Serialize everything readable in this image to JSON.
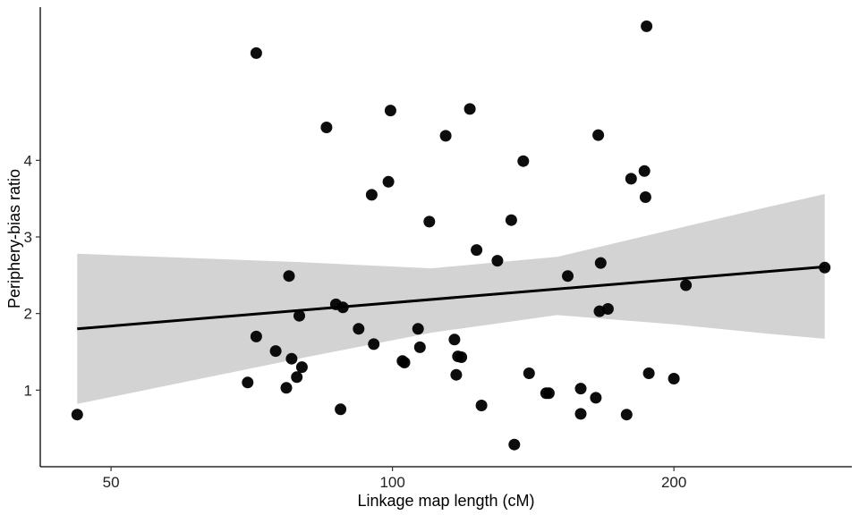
{
  "chart_data": {
    "type": "scatter",
    "title": "",
    "xlabel": "Linkage map length (cM)",
    "ylabel": "Periphery-bias ratio",
    "x_scale": "log10",
    "xlim": [
      42,
      310
    ],
    "ylim": [
      0,
      6
    ],
    "x_ticks": [
      50,
      100,
      200
    ],
    "x_tick_labels": [
      "50",
      "100",
      "200"
    ],
    "y_ticks": [
      1,
      2,
      3,
      4
    ],
    "y_tick_labels": [
      "1",
      "2",
      "3",
      "4"
    ],
    "grid": false,
    "legend": "none",
    "point_color": "#000000",
    "band_color": "#d3d3d3",
    "line_color": "#000000",
    "points": [
      {
        "x": 46,
        "y": 0.68
      },
      {
        "x": 70,
        "y": 1.1
      },
      {
        "x": 71.5,
        "y": 5.4
      },
      {
        "x": 71.5,
        "y": 1.7
      },
      {
        "x": 75,
        "y": 1.51
      },
      {
        "x": 77,
        "y": 1.03
      },
      {
        "x": 77.5,
        "y": 2.49
      },
      {
        "x": 78,
        "y": 1.41
      },
      {
        "x": 79,
        "y": 1.17
      },
      {
        "x": 79.5,
        "y": 1.97
      },
      {
        "x": 80,
        "y": 1.3
      },
      {
        "x": 85,
        "y": 4.43
      },
      {
        "x": 87,
        "y": 2.12
      },
      {
        "x": 88,
        "y": 0.75
      },
      {
        "x": 88.5,
        "y": 2.08
      },
      {
        "x": 92,
        "y": 1.8
      },
      {
        "x": 95,
        "y": 3.55
      },
      {
        "x": 95.5,
        "y": 1.6
      },
      {
        "x": 99,
        "y": 3.72
      },
      {
        "x": 99.5,
        "y": 4.65
      },
      {
        "x": 102.5,
        "y": 1.38
      },
      {
        "x": 103,
        "y": 1.36
      },
      {
        "x": 106.5,
        "y": 1.8
      },
      {
        "x": 107,
        "y": 1.56
      },
      {
        "x": 109.5,
        "y": 3.2
      },
      {
        "x": 114,
        "y": 4.32
      },
      {
        "x": 116.5,
        "y": 1.66
      },
      {
        "x": 117,
        "y": 1.2
      },
      {
        "x": 117.5,
        "y": 1.44
      },
      {
        "x": 118.5,
        "y": 1.43
      },
      {
        "x": 121,
        "y": 4.67
      },
      {
        "x": 123,
        "y": 2.83
      },
      {
        "x": 124.5,
        "y": 0.8
      },
      {
        "x": 129.5,
        "y": 2.69
      },
      {
        "x": 134,
        "y": 3.22
      },
      {
        "x": 135,
        "y": 0.29
      },
      {
        "x": 138,
        "y": 3.99
      },
      {
        "x": 140,
        "y": 1.22
      },
      {
        "x": 146,
        "y": 0.96
      },
      {
        "x": 147,
        "y": 0.96
      },
      {
        "x": 154,
        "y": 2.49
      },
      {
        "x": 159,
        "y": 1.02
      },
      {
        "x": 159,
        "y": 0.69
      },
      {
        "x": 165,
        "y": 0.9
      },
      {
        "x": 166,
        "y": 4.33
      },
      {
        "x": 166.5,
        "y": 2.03
      },
      {
        "x": 167,
        "y": 2.66
      },
      {
        "x": 170,
        "y": 2.06
      },
      {
        "x": 178,
        "y": 0.68
      },
      {
        "x": 180,
        "y": 3.76
      },
      {
        "x": 186,
        "y": 3.86
      },
      {
        "x": 186.5,
        "y": 3.52
      },
      {
        "x": 187,
        "y": 5.75
      },
      {
        "x": 188,
        "y": 1.22
      },
      {
        "x": 200,
        "y": 1.15
      },
      {
        "x": 206,
        "y": 2.37
      },
      {
        "x": 290,
        "y": 2.6
      }
    ],
    "trend_line": {
      "x": [
        46,
        290
      ],
      "y": [
        1.8,
        2.61
      ]
    },
    "confidence_band": {
      "x": [
        46,
        80,
        110,
        150,
        200,
        250,
        290
      ],
      "upper": [
        2.78,
        2.67,
        2.59,
        2.74,
        3.1,
        3.38,
        3.56
      ],
      "lower": [
        0.82,
        1.42,
        1.75,
        1.98,
        1.86,
        1.74,
        1.67
      ]
    }
  }
}
